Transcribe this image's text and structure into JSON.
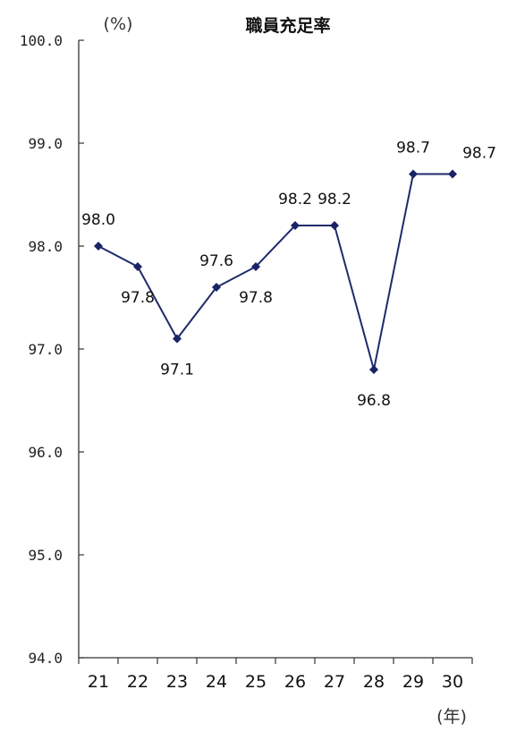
{
  "chart_data": {
    "type": "line",
    "title": "職員充足率",
    "y_unit": "(%)",
    "x_unit": "(年)",
    "categories": [
      "21",
      "22",
      "23",
      "24",
      "25",
      "26",
      "27",
      "28",
      "29",
      "30"
    ],
    "series": [
      {
        "values": [
          98.0,
          97.8,
          97.1,
          97.6,
          97.8,
          98.2,
          98.2,
          96.8,
          98.7,
          98.7
        ]
      }
    ],
    "data_labels": [
      "98.0",
      "97.8",
      "97.1",
      "97.6",
      "97.8",
      "98.2",
      "98.2",
      "96.8",
      "98.7",
      "98.7"
    ],
    "ylim": [
      94.0,
      100.0
    ],
    "yticks": [
      "100.0",
      "99.0",
      "98.0",
      "97.0",
      "96.0",
      "95.0",
      "94.0"
    ],
    "grid": false,
    "legend": "none",
    "colors": {
      "line": "#1f2a6b",
      "marker": "#1a2366",
      "axis": "#333333"
    }
  }
}
